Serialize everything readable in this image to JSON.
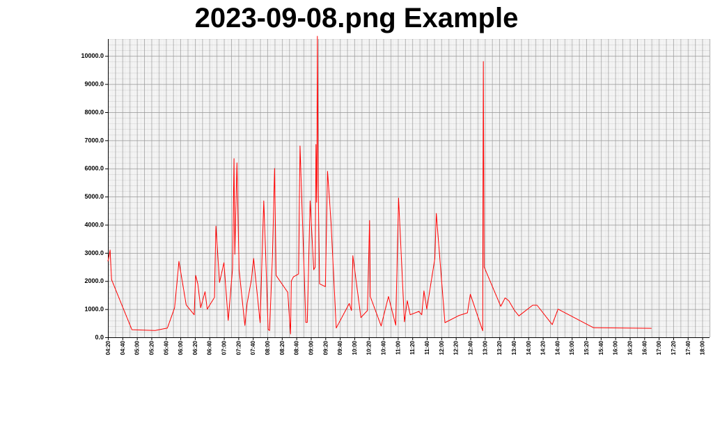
{
  "chart_data": {
    "type": "line",
    "title": "2023-09-08.png Example",
    "xlabel": "",
    "ylabel": "",
    "ylim": [
      0,
      10600
    ],
    "xlim": [
      "04:20",
      "18:10"
    ],
    "grid": true,
    "yticks": [
      "0.0",
      "1000.0",
      "2000.0",
      "3000.0",
      "4000.0",
      "5000.0",
      "6000.0",
      "7000.0",
      "8000.0",
      "9000.0",
      "10000.0"
    ],
    "xticks": [
      "04:20",
      "04:40",
      "05:00",
      "05:20",
      "05:40",
      "06:00",
      "06:20",
      "06:40",
      "07:00",
      "07:20",
      "07:40",
      "08:00",
      "08:20",
      "08:40",
      "09:00",
      "09:20",
      "09:40",
      "10:00",
      "10:20",
      "10:40",
      "11:00",
      "11:20",
      "11:40",
      "12:00",
      "12:20",
      "12:40",
      "13:00",
      "13:20",
      "13:40",
      "14:00",
      "14:20",
      "14:40",
      "15:00",
      "15:20",
      "15:40",
      "16:00",
      "16:20",
      "16:40",
      "17:00",
      "17:20",
      "17:40",
      "18:00"
    ],
    "series": [
      {
        "color": "#ff0000",
        "points": [
          [
            "04:20",
            2700
          ],
          [
            "04:23",
            3100
          ],
          [
            "04:25",
            2050
          ],
          [
            "04:53",
            270
          ],
          [
            "05:25",
            240
          ],
          [
            "05:42",
            330
          ],
          [
            "05:52",
            1050
          ],
          [
            "05:58",
            2700
          ],
          [
            "06:08",
            1150
          ],
          [
            "06:19",
            800
          ],
          [
            "06:21",
            2200
          ],
          [
            "06:24",
            1900
          ],
          [
            "06:28",
            1050
          ],
          [
            "06:34",
            1620
          ],
          [
            "06:37",
            1000
          ],
          [
            "06:47",
            1420
          ],
          [
            "06:49",
            3950
          ],
          [
            "06:54",
            1950
          ],
          [
            "07:00",
            2650
          ],
          [
            "07:06",
            600
          ],
          [
            "07:12",
            2450
          ],
          [
            "07:14",
            6350
          ],
          [
            "07:15",
            2950
          ],
          [
            "07:18",
            6200
          ],
          [
            "07:21",
            2400
          ],
          [
            "07:29",
            420
          ],
          [
            "07:32",
            1200
          ],
          [
            "07:38",
            2050
          ],
          [
            "07:41",
            2800
          ],
          [
            "07:50",
            520
          ],
          [
            "07:55",
            4850
          ],
          [
            "07:58",
            2700
          ],
          [
            "08:01",
            280
          ],
          [
            "08:03",
            240
          ],
          [
            "08:07",
            2900
          ],
          [
            "08:10",
            6000
          ],
          [
            "08:12",
            2200
          ],
          [
            "08:28",
            1600
          ],
          [
            "08:32",
            120
          ],
          [
            "08:33",
            2000
          ],
          [
            "08:36",
            2150
          ],
          [
            "08:43",
            2250
          ],
          [
            "08:45",
            6800
          ],
          [
            "08:53",
            530
          ],
          [
            "08:55",
            530
          ],
          [
            "08:59",
            4850
          ],
          [
            "09:04",
            2400
          ],
          [
            "09:06",
            2500
          ],
          [
            "09:07",
            6850
          ],
          [
            "09:08",
            4800
          ],
          [
            "09:09",
            10700
          ],
          [
            "09:10",
            5500
          ],
          [
            "09:12",
            1900
          ],
          [
            "09:20",
            1800
          ],
          [
            "09:23",
            5900
          ],
          [
            "09:26",
            4800
          ],
          [
            "09:28",
            4000
          ],
          [
            "09:35",
            330
          ],
          [
            "09:53",
            1200
          ],
          [
            "09:56",
            950
          ],
          [
            "09:58",
            2900
          ],
          [
            "10:09",
            700
          ],
          [
            "10:18",
            950
          ],
          [
            "10:21",
            4150
          ],
          [
            "10:22",
            1450
          ],
          [
            "10:37",
            400
          ],
          [
            "10:47",
            1450
          ],
          [
            "10:57",
            430
          ],
          [
            "11:01",
            4950
          ],
          [
            "11:09",
            550
          ],
          [
            "11:13",
            1300
          ],
          [
            "11:17",
            800
          ],
          [
            "11:29",
            920
          ],
          [
            "11:33",
            800
          ],
          [
            "11:36",
            1650
          ],
          [
            "11:40",
            1000
          ],
          [
            "11:51",
            2800
          ],
          [
            "11:53",
            4400
          ],
          [
            "12:05",
            520
          ],
          [
            "12:24",
            770
          ],
          [
            "12:36",
            870
          ],
          [
            "12:40",
            1530
          ],
          [
            "12:57",
            230
          ],
          [
            "12:58",
            9800
          ],
          [
            "12:59",
            2500
          ],
          [
            "13:22",
            1100
          ],
          [
            "13:28",
            1400
          ],
          [
            "13:33",
            1300
          ],
          [
            "13:41",
            950
          ],
          [
            "13:47",
            760
          ],
          [
            "14:06",
            1140
          ],
          [
            "14:12",
            1140
          ],
          [
            "14:33",
            450
          ],
          [
            "14:41",
            1000
          ],
          [
            "15:30",
            340
          ],
          [
            "16:50",
            320
          ]
        ]
      }
    ]
  }
}
